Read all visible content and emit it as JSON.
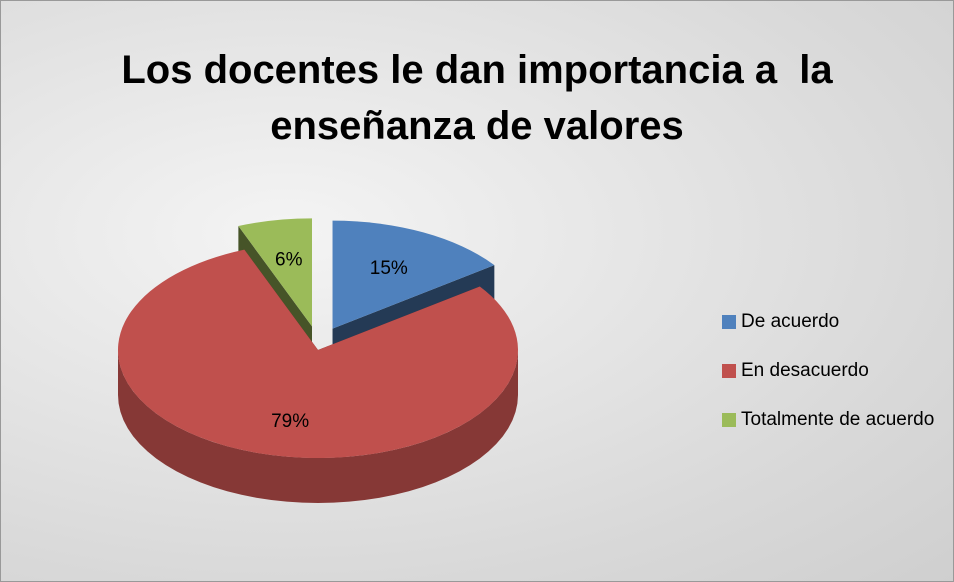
{
  "chart_data": {
    "type": "pie",
    "title": "Los docentes le dan importancia a  la enseñanza de valores",
    "categories": [
      "De acuerdo",
      "En desacuerdo",
      "Totalmente de acuerdo"
    ],
    "values": [
      15,
      79,
      6
    ],
    "value_labels": [
      "15%",
      "79%",
      "6%"
    ],
    "colors": [
      "#4f81bd",
      "#c0504d",
      "#9bbb59"
    ],
    "legend": "right"
  }
}
